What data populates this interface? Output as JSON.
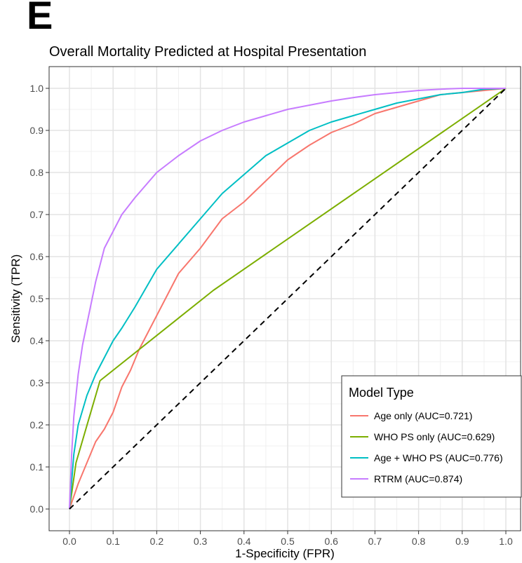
{
  "panel_label": "E",
  "chart_data": {
    "type": "line",
    "title": "Overall Mortality Predicted at Hospital Presentation",
    "xlabel": "1-Specificity (FPR)",
    "ylabel": "Sensitivity (TPR)",
    "xlim": [
      0,
      1
    ],
    "ylim": [
      0,
      1
    ],
    "xticks": [
      "0.0",
      "0.1",
      "0.2",
      "0.3",
      "0.4",
      "0.5",
      "0.6",
      "0.7",
      "0.8",
      "0.9",
      "1.0"
    ],
    "yticks": [
      "0.0",
      "0.1",
      "0.2",
      "0.3",
      "0.4",
      "0.5",
      "0.6",
      "0.7",
      "0.8",
      "0.9",
      "1.0"
    ],
    "grid": true,
    "legend": {
      "title": "Model Type",
      "placement": "bottom-right"
    },
    "series": [
      {
        "name": "Age only (AUC=0.721)",
        "color": "#F8766D",
        "x": [
          0,
          0.02,
          0.04,
          0.06,
          0.08,
          0.1,
          0.12,
          0.14,
          0.16,
          0.18,
          0.2,
          0.25,
          0.3,
          0.35,
          0.4,
          0.45,
          0.5,
          0.55,
          0.6,
          0.65,
          0.7,
          0.75,
          0.8,
          0.85,
          0.9,
          0.95,
          1.0
        ],
        "y": [
          0,
          0.06,
          0.11,
          0.16,
          0.19,
          0.23,
          0.29,
          0.33,
          0.38,
          0.42,
          0.46,
          0.56,
          0.62,
          0.69,
          0.73,
          0.78,
          0.83,
          0.865,
          0.895,
          0.915,
          0.94,
          0.955,
          0.97,
          0.985,
          0.99,
          0.995,
          1.0
        ]
      },
      {
        "name": "WHO PS only (AUC=0.629)",
        "color": "#7CAE00",
        "x": [
          0,
          0.015,
          0.07,
          0.33,
          1.0
        ],
        "y": [
          0,
          0.11,
          0.305,
          0.52,
          1.0
        ]
      },
      {
        "name": "Age + WHO PS (AUC=0.776)",
        "color": "#00BFC4",
        "x": [
          0,
          0.01,
          0.02,
          0.04,
          0.06,
          0.08,
          0.1,
          0.12,
          0.15,
          0.2,
          0.25,
          0.3,
          0.35,
          0.4,
          0.45,
          0.5,
          0.55,
          0.6,
          0.65,
          0.7,
          0.75,
          0.8,
          0.85,
          0.9,
          0.95,
          1.0
        ],
        "y": [
          0,
          0.13,
          0.2,
          0.27,
          0.32,
          0.36,
          0.4,
          0.43,
          0.48,
          0.57,
          0.63,
          0.69,
          0.75,
          0.795,
          0.84,
          0.87,
          0.9,
          0.92,
          0.935,
          0.95,
          0.965,
          0.975,
          0.985,
          0.99,
          0.998,
          1.0
        ]
      },
      {
        "name": "RTRM (AUC=0.874)",
        "color": "#C77CFF",
        "x": [
          0,
          0.005,
          0.01,
          0.02,
          0.03,
          0.04,
          0.05,
          0.06,
          0.08,
          0.1,
          0.12,
          0.15,
          0.2,
          0.25,
          0.3,
          0.35,
          0.4,
          0.45,
          0.5,
          0.55,
          0.6,
          0.65,
          0.7,
          0.75,
          0.8,
          0.85,
          0.9,
          0.95,
          1.0
        ],
        "y": [
          0,
          0.13,
          0.22,
          0.32,
          0.39,
          0.44,
          0.49,
          0.54,
          0.62,
          0.66,
          0.7,
          0.74,
          0.8,
          0.84,
          0.875,
          0.9,
          0.92,
          0.935,
          0.95,
          0.96,
          0.97,
          0.978,
          0.985,
          0.99,
          0.995,
          0.998,
          1.0,
          1.0,
          1.0
        ]
      }
    ],
    "reference_line": {
      "type": "diagonal",
      "style": "dashed",
      "color": "#000000"
    }
  }
}
